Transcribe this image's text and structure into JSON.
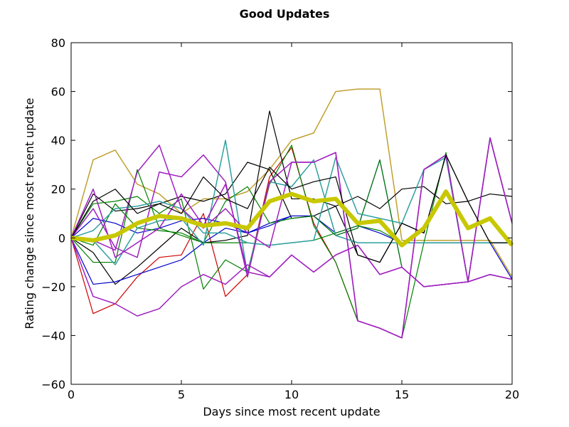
{
  "chart_data": {
    "type": "line",
    "title": "Good Updates",
    "xlabel": "Days since most recent update",
    "ylabel": "Rating change since most recent update",
    "xlim": [
      0,
      20
    ],
    "ylim": [
      -60,
      80
    ],
    "xticks": [
      0,
      5,
      10,
      15,
      20
    ],
    "yticks": [
      -60,
      -40,
      -20,
      0,
      20,
      40,
      60,
      80
    ],
    "grid": false,
    "legend": "none",
    "x": [
      0,
      1,
      2,
      3,
      4,
      5,
      6,
      7,
      8,
      9,
      10,
      11,
      12,
      13,
      14,
      15,
      16,
      17,
      18,
      19,
      20
    ],
    "series": [
      {
        "color": "#c0a030",
        "width": 1.5,
        "values": [
          0,
          32,
          36,
          22,
          18,
          10,
          16,
          16,
          19,
          28,
          40,
          43,
          60,
          61,
          61,
          -1,
          -1,
          -1,
          -1,
          -1,
          -16
        ]
      },
      {
        "color": "#cc0000",
        "width": 1.2,
        "values": [
          0,
          -31,
          -27,
          -16,
          -8,
          -7,
          10,
          -24,
          -15,
          25,
          37,
          6,
          -10,
          -34,
          -37,
          -41,
          28,
          34,
          -18,
          41,
          6
        ]
      },
      {
        "color": "#000000",
        "width": 1.2,
        "values": [
          0,
          -6,
          -19,
          -12,
          -4,
          4,
          -2,
          -1,
          1,
          52,
          16,
          16,
          13,
          -7,
          -10,
          6,
          2,
          34,
          15,
          -2,
          -2
        ]
      },
      {
        "color": "#000000",
        "width": 1.2,
        "values": [
          0,
          18,
          11,
          12,
          14,
          17,
          15,
          18,
          31,
          28,
          8,
          9,
          13,
          17,
          12,
          20,
          21,
          14,
          15,
          18,
          17
        ]
      },
      {
        "color": "#0000cc",
        "width": 1.2,
        "values": [
          0,
          -19,
          -18,
          -15,
          -12,
          -9,
          -2,
          4,
          2,
          5,
          9,
          9,
          1,
          4,
          32,
          -12,
          -20,
          -19,
          -18,
          -15,
          -17
        ]
      },
      {
        "color": "#0000cc",
        "width": 1.2,
        "values": [
          0,
          8,
          6,
          2,
          4,
          7,
          8,
          6,
          2,
          6,
          9,
          9,
          2,
          5,
          2,
          -2,
          -2,
          -2,
          -2,
          -2,
          -17
        ]
      },
      {
        "color": "#008000",
        "width": 1.2,
        "values": [
          0,
          14,
          15,
          17,
          10,
          16,
          -21,
          -9,
          -14,
          22,
          38,
          5,
          -10,
          -34,
          -37,
          -41,
          -2,
          35,
          -18,
          -15,
          -17
        ]
      },
      {
        "color": "#008000",
        "width": 1.2,
        "values": [
          0,
          -10,
          -10,
          28,
          4,
          1,
          -2,
          -2,
          -2,
          -3,
          -2,
          -1,
          2,
          5,
          3,
          -2,
          -2,
          -2,
          -2,
          -2,
          -2
        ]
      },
      {
        "color": "#008000",
        "width": 1.2,
        "values": [
          0,
          -3,
          14,
          4,
          3,
          2,
          -2,
          15,
          21,
          6,
          8,
          9,
          1,
          4,
          32,
          -12,
          -20,
          -19,
          -18,
          -15,
          -17
        ]
      },
      {
        "color": "#30a0a0",
        "width": 1.5,
        "values": [
          0,
          -1,
          -11,
          4,
          7,
          8,
          -3,
          40,
          -15,
          23,
          21,
          32,
          1,
          -2,
          -2,
          -2,
          -2,
          -2,
          -2,
          -2,
          -2
        ]
      },
      {
        "color": "#30a0a0",
        "width": 1.5,
        "values": [
          0,
          3,
          12,
          13,
          15,
          12,
          2,
          2,
          -2,
          -3,
          -2,
          -1,
          33,
          10,
          8,
          6,
          28,
          33,
          -18,
          41,
          6
        ]
      },
      {
        "color": "#a020c0",
        "width": 1.5,
        "values": [
          0,
          20,
          -8,
          -2,
          4,
          18,
          5,
          22,
          -14,
          -16,
          -7,
          -14,
          -7,
          -3,
          -15,
          -12,
          -20,
          -19,
          -18,
          -15,
          -17
        ]
      },
      {
        "color": "#a020c0",
        "width": 1.5,
        "values": [
          0,
          -24,
          -27,
          -32,
          -29,
          -20,
          -15,
          -19,
          -11,
          -16,
          -7,
          -14,
          -7,
          -3,
          -15,
          -12,
          -20,
          -19,
          -18,
          -15,
          -17
        ]
      },
      {
        "color": "#a020c0",
        "width": 1.5,
        "values": [
          0,
          -1,
          -5,
          27,
          38,
          12,
          4,
          12,
          2,
          -4,
          31,
          31,
          35,
          -34,
          -37,
          -41,
          28,
          34,
          -18,
          41,
          6
        ]
      },
      {
        "color": "#a020c0",
        "width": 1.5,
        "values": [
          0,
          12,
          -4,
          -8,
          27,
          25,
          34,
          23,
          -16,
          23,
          31,
          31,
          35,
          -34,
          -37,
          -41,
          28,
          34,
          -18,
          41,
          6
        ]
      },
      {
        "color": "#000000",
        "width": 1.2,
        "values": [
          0,
          15,
          20,
          10,
          14,
          10,
          25,
          16,
          12,
          29,
          20,
          23,
          25,
          -7,
          -10,
          6,
          2,
          34,
          15,
          -2,
          -2
        ]
      },
      {
        "color": "#c8c800",
        "width": 6,
        "values": [
          0,
          -1,
          1,
          6,
          9,
          8,
          5,
          6,
          4,
          15,
          18,
          15,
          16,
          6,
          7,
          -3,
          4,
          19,
          4,
          8,
          -3
        ]
      }
    ]
  }
}
